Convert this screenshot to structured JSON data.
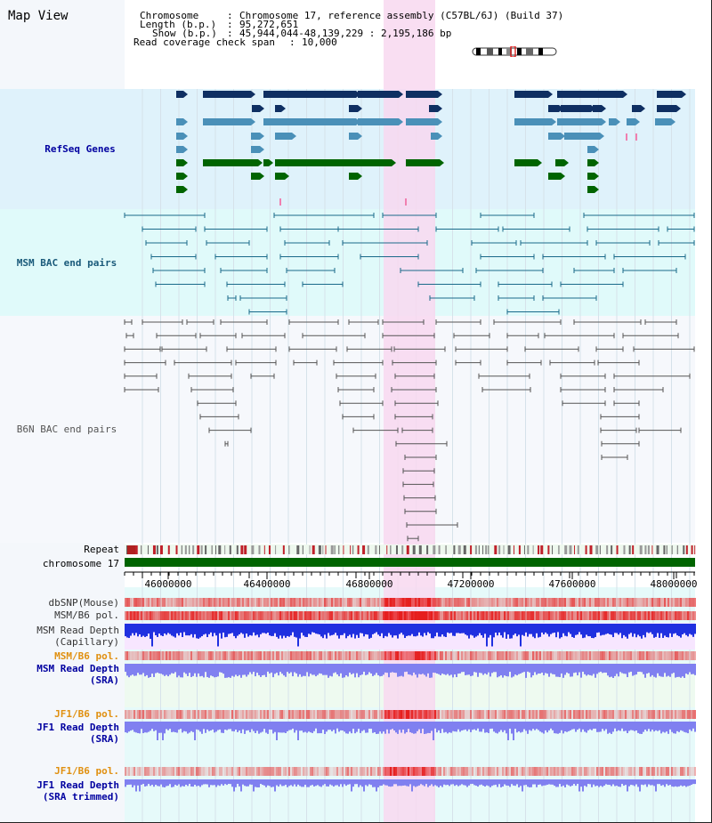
{
  "map_title": "Map View",
  "info": {
    "chromosome_key": "Chromosome",
    "chromosome_value": "Chromosome 17, reference assembly (C57BL/6J) (Build 37)",
    "length_key": "Length (b.p.)",
    "length_value": "95,272,651",
    "show_key": "Show (b.p.)",
    "show_value": "45,944,044-48,139,229 : 2,195,186 bp",
    "coverage_key": "Read coverage check span",
    "coverage_value": "10,000"
  },
  "tracks": {
    "refseq": "RefSeq Genes",
    "msm_bac": "MSM BAC end pairs",
    "b6n_bac": "B6N BAC end pairs",
    "repeat": "Repeat",
    "chromosome": "chromosome 17",
    "dbsnp": "dbSNP(Mouse)",
    "msm_b6_pol": "MSM/B6 pol.",
    "msm_depth_cap_1": "MSM Read Depth",
    "msm_depth_cap_2": "(Capillary)",
    "msm_b6_pol_2": "MSM/B6 pol.",
    "msm_depth_sra_1": "MSM Read Depth",
    "msm_depth_sra_2": "(SRA)",
    "jf1_b6_pol": "JF1/B6 pol.",
    "jf1_depth_sra_1": "JF1 Read Depth",
    "jf1_depth_sra_2": "(SRA)",
    "jf1_b6_pol_2": "JF1/B6 pol.",
    "jf1_depth_trim_1": "JF1 Read Depth",
    "jf1_depth_trim_2": "(SRA trimmed)"
  },
  "axis": {
    "ticks": [
      "46000000",
      "46400000",
      "46800000",
      "47200000",
      "47600000",
      "48000000"
    ]
  },
  "colors": {
    "highlight": "#f8d8f0",
    "refseq_bg": "#dff2fb",
    "msm_bg": "#e0fafa",
    "b6n_bg": "#f6f8fc",
    "gene_dark": "#0f2f62",
    "gene_mid": "#4a90b8",
    "gene_green": "#006400",
    "msm_line": "#1a6a8a",
    "b6n_line": "#555555",
    "orange_label": "#e09010",
    "blue_label": "#0000a0"
  }
}
